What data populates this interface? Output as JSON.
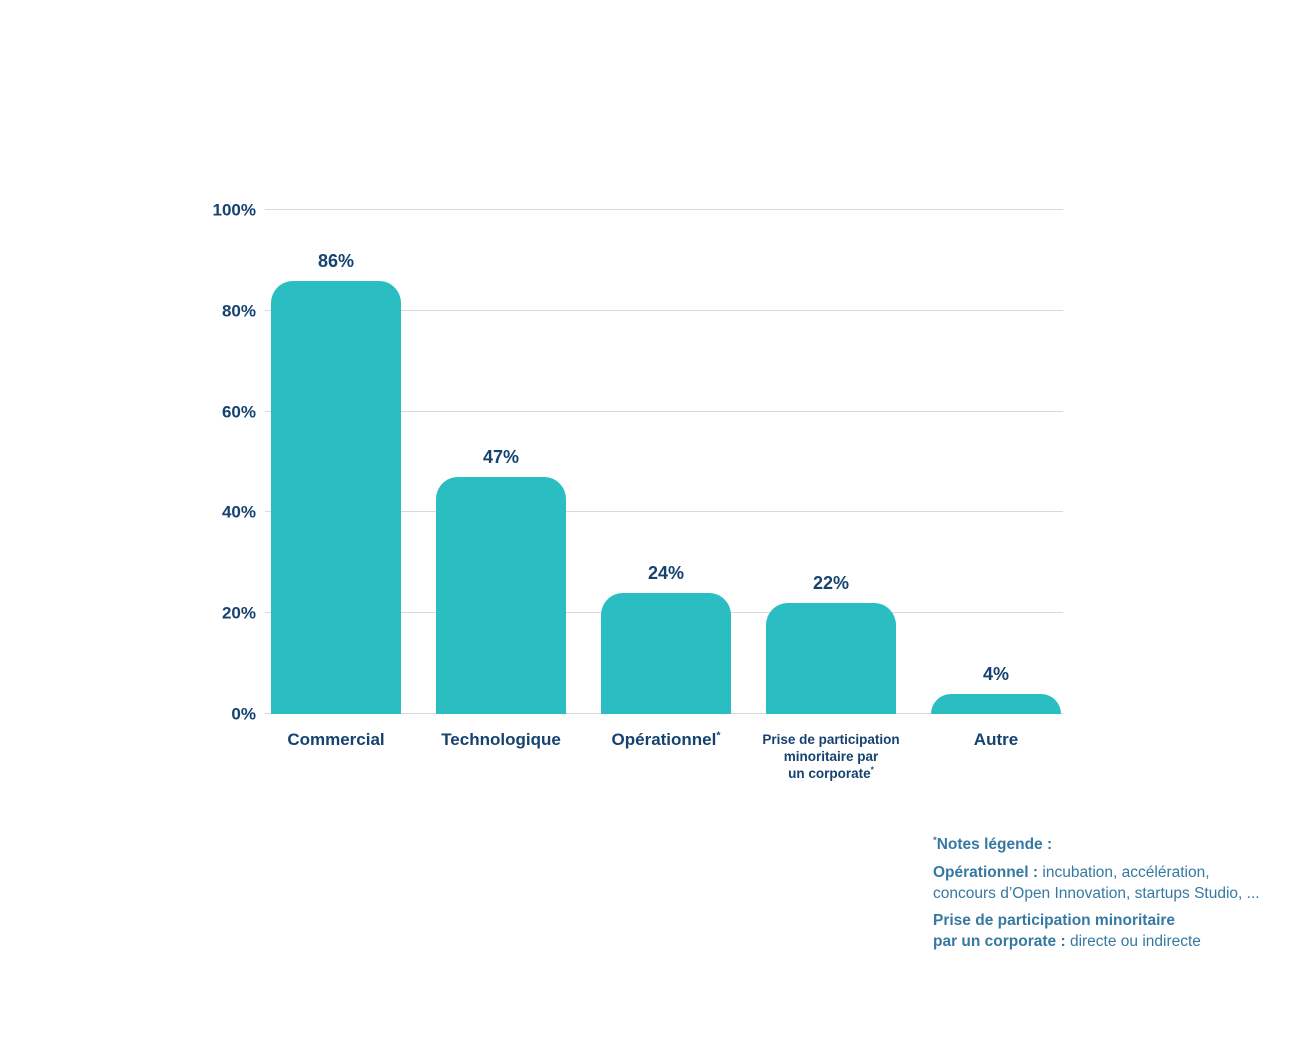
{
  "colors": {
    "bar": "#2ABEC3",
    "text_navy": "#16426F",
    "notes_steel_blue": "#3579A3",
    "gridline": "#D9D9D9",
    "background": "#FFFFFF"
  },
  "chart_data": {
    "type": "bar",
    "title": "",
    "xlabel": "",
    "ylabel": "",
    "unit": "%",
    "ylim": [
      0,
      100
    ],
    "yticks": [
      0,
      20,
      40,
      60,
      80,
      100
    ],
    "ytick_labels": [
      "0%",
      "20%",
      "40%",
      "60%",
      "80%",
      "100%"
    ],
    "grid": true,
    "categories": [
      "Commercial",
      "Technologique",
      "Opérationnel*",
      "Prise de participation minoritaire par un corporate*",
      "Autre"
    ],
    "values": [
      86,
      47,
      24,
      22,
      4
    ],
    "value_labels": [
      "86%",
      "47%",
      "24%",
      "22%",
      "4%"
    ],
    "bars": [
      {
        "label_lines": [
          "Commercial"
        ],
        "value": 86,
        "asterisk": false,
        "small_label": false
      },
      {
        "label_lines": [
          "Technologique"
        ],
        "value": 47,
        "asterisk": false,
        "small_label": false
      },
      {
        "label_lines": [
          "Opérationnel"
        ],
        "value": 24,
        "asterisk": true,
        "small_label": false
      },
      {
        "label_lines": [
          "Prise de participation",
          "minoritaire par",
          "un corporate"
        ],
        "value": 22,
        "asterisk": true,
        "small_label": true
      },
      {
        "label_lines": [
          "Autre"
        ],
        "value": 4,
        "asterisk": false,
        "small_label": false
      }
    ]
  },
  "notes": {
    "sup": "*",
    "title": "Notes légende :",
    "paragraphs": [
      {
        "lines": [
          [
            {
              "b": true,
              "t": "Opérationnel :"
            },
            {
              "b": false,
              "t": " incubation, accélération,"
            }
          ],
          [
            {
              "b": false,
              "t": "concours d’Open Innovation, startups Studio, ..."
            }
          ]
        ]
      },
      {
        "lines": [
          [
            {
              "b": true,
              "t": "Prise de participation minoritaire"
            }
          ],
          [
            {
              "b": true,
              "t": "par un corporate :"
            },
            {
              "b": false,
              "t": " directe ou indirecte"
            }
          ]
        ]
      }
    ]
  }
}
